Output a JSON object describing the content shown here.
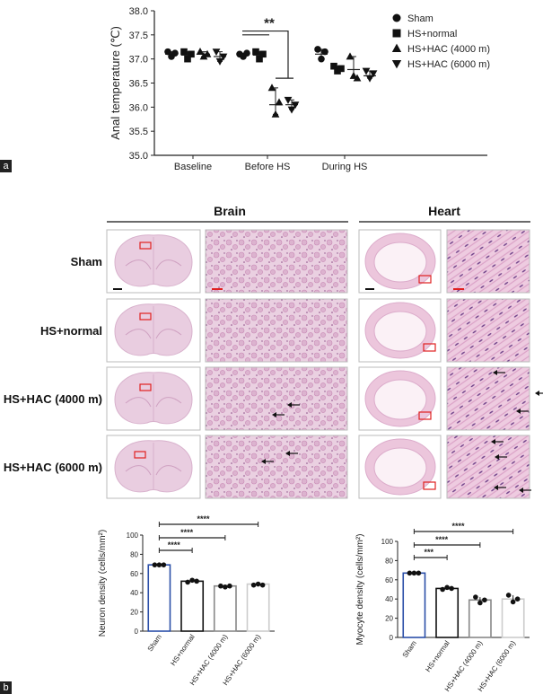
{
  "panel_a": "a",
  "panel_b": "b",
  "histology": {
    "brain_title": "Brain",
    "heart_title": "Heart",
    "rows": [
      "Sham",
      "HS+normal",
      "HS+HAC (4000 m)",
      "HS+HAC (6000 m)"
    ]
  },
  "chart_data": [
    {
      "type": "scatter",
      "ylabel": "Anal temperature (℃)",
      "ylim": [
        35.0,
        38.0
      ],
      "yticks": [
        "35.0",
        "35.5",
        "36.0",
        "36.5",
        "37.0",
        "37.5",
        "38.0"
      ],
      "categories": [
        "Baseline",
        "Before HS",
        "During HS"
      ],
      "legend": [
        "Sham",
        "HS+normal",
        "HS+HAC (4000 m)",
        "HS+HAC (6000 m)"
      ],
      "legend_position": "right",
      "annotation": "**",
      "series": [
        {
          "name": "Sham",
          "marker": "circle",
          "mean": [
            37.1,
            37.08,
            37.1
          ],
          "points": [
            [
              37.15,
              37.05,
              37.12
            ],
            [
              37.1,
              37.05,
              37.12
            ],
            [
              37.2,
              37.0,
              37.15
            ]
          ]
        },
        {
          "name": "HS+normal",
          "marker": "square",
          "mean": [
            37.08,
            37.08,
            36.82
          ],
          "points": [
            [
              37.15,
              37.0,
              37.1
            ],
            [
              37.15,
              37.0,
              37.1
            ],
            [
              36.85,
              36.75,
              36.8
            ]
          ]
        },
        {
          "name": "HS+HAC (4000 m)",
          "marker": "triangle-up",
          "mean": [
            37.1,
            36.05,
            36.78
          ],
          "points": [
            [
              37.15,
              37.05,
              37.1
            ],
            [
              36.4,
              35.85,
              36.1
            ],
            [
              37.05,
              36.65,
              36.6
            ]
          ]
        },
        {
          "name": "HS+HAC (6000 m)",
          "marker": "triangle-down",
          "mean": [
            37.05,
            36.05,
            36.65
          ],
          "points": [
            [
              37.15,
              36.95,
              37.05
            ],
            [
              36.15,
              35.95,
              36.05
            ],
            [
              36.75,
              36.6,
              36.7
            ]
          ]
        }
      ]
    },
    {
      "type": "bar",
      "ylabel": "Neuron density (cells/mm²)",
      "ylim": [
        0,
        100
      ],
      "yticks": [
        "0",
        "20",
        "40",
        "60",
        "80",
        "100"
      ],
      "categories": [
        "Sham",
        "HS+normal",
        "HS+HAC (4000 m)",
        "HS+HAC (6000 m)"
      ],
      "values": [
        69,
        52,
        47,
        49
      ],
      "points": [
        [
          69,
          69,
          69
        ],
        [
          51,
          53,
          52
        ],
        [
          47,
          46,
          47
        ],
        [
          48,
          49,
          48
        ]
      ],
      "colors": [
        "#2b4fa8",
        "#111111",
        "#888888",
        "#cccccc"
      ],
      "significance": [
        "****",
        "****",
        "****"
      ]
    },
    {
      "type": "bar",
      "ylabel": "Myocyte density (cells/mm²)",
      "ylim": [
        0,
        100
      ],
      "yticks": [
        "0",
        "20",
        "40",
        "60",
        "80",
        "100"
      ],
      "categories": [
        "Sham",
        "HS+normal",
        "HS+HAC (4000 m)",
        "HS+HAC (6000 m)"
      ],
      "values": [
        67,
        51,
        39,
        40
      ],
      "points": [
        [
          67,
          67,
          67
        ],
        [
          50,
          52,
          51
        ],
        [
          42,
          36,
          39
        ],
        [
          44,
          37,
          40
        ]
      ],
      "colors": [
        "#2b4fa8",
        "#111111",
        "#888888",
        "#cccccc"
      ],
      "significance": [
        "***",
        "****",
        "****"
      ]
    }
  ]
}
